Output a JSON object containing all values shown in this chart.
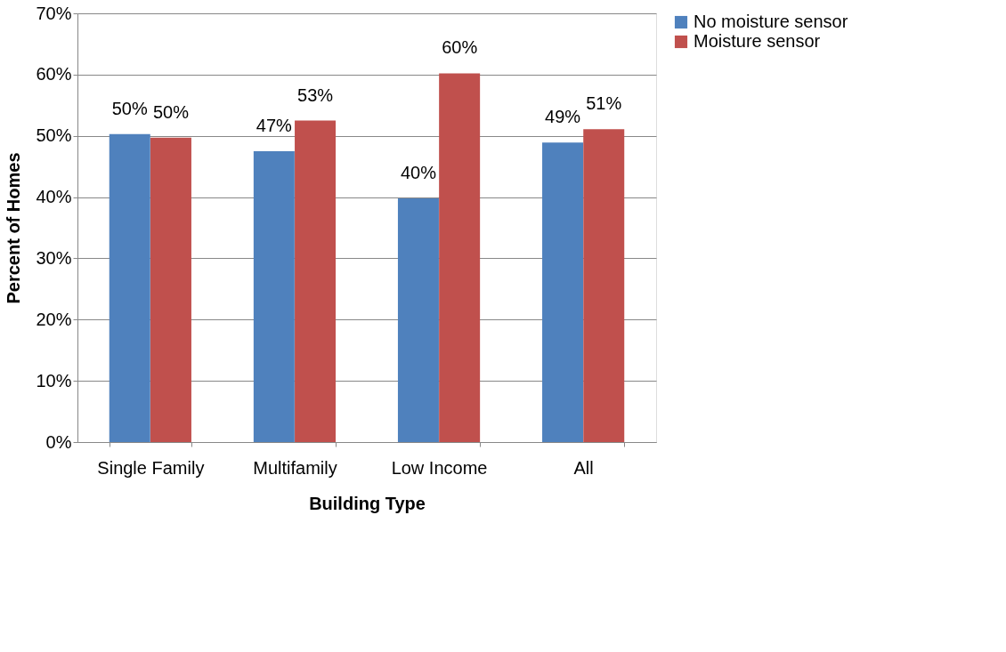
{
  "chart_data": {
    "type": "bar",
    "xlabel": "Building Type",
    "ylabel": "Percent of Homes",
    "categories": [
      "Single Family",
      "Multifamily",
      "Low Income",
      "All"
    ],
    "series": [
      {
        "name": "No moisture sensor",
        "color": "#4f81bd",
        "values": [
          50.3,
          47.5,
          39.8,
          48.9
        ],
        "value_labels": [
          "50%",
          "47%",
          "40%",
          "49%"
        ]
      },
      {
        "name": "Moisture sensor",
        "color": "#c0504d",
        "values": [
          49.7,
          52.5,
          60.2,
          51.1
        ],
        "value_labels": [
          "50%",
          "53%",
          "60%",
          "51%"
        ]
      }
    ],
    "ylim": [
      0,
      70
    ],
    "yticks": [
      {
        "value": 0,
        "label": "0%"
      },
      {
        "value": 10,
        "label": "10%"
      },
      {
        "value": 20,
        "label": "20%"
      },
      {
        "value": 30,
        "label": "30%"
      },
      {
        "value": 40,
        "label": "40%"
      },
      {
        "value": 50,
        "label": "50%"
      },
      {
        "value": 60,
        "label": "60%"
      },
      {
        "value": 70,
        "label": "70%"
      }
    ],
    "grid": "y",
    "legend": "right"
  }
}
